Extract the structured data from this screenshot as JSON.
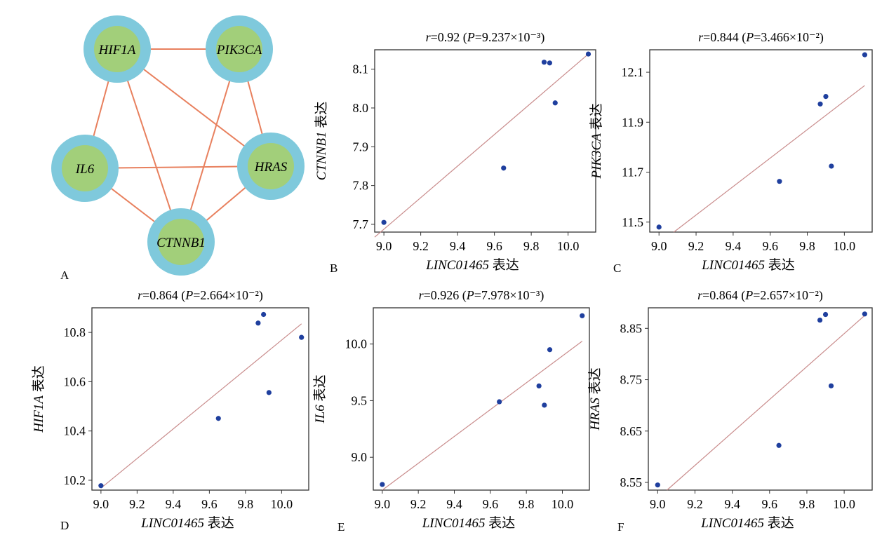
{
  "network": {
    "panel_letter": "A",
    "edge_color": "#e8805e",
    "outer_color": "#7fc9dc",
    "inner_color": "#a2cf7a",
    "nodes": [
      {
        "id": "HIF1A",
        "label": "HIF1A"
      },
      {
        "id": "PIK3CA",
        "label": "PIK3CA"
      },
      {
        "id": "IL6",
        "label": "IL6"
      },
      {
        "id": "HRAS",
        "label": "HRAS"
      },
      {
        "id": "CTNNB1",
        "label": "CTNNB1"
      }
    ],
    "edges": [
      [
        "HIF1A",
        "PIK3CA"
      ],
      [
        "HIF1A",
        "IL6"
      ],
      [
        "HIF1A",
        "HRAS"
      ],
      [
        "HIF1A",
        "CTNNB1"
      ],
      [
        "PIK3CA",
        "HRAS"
      ],
      [
        "PIK3CA",
        "CTNNB1"
      ],
      [
        "IL6",
        "HRAS"
      ],
      [
        "IL6",
        "CTNNB1"
      ],
      [
        "HRAS",
        "CTNNB1"
      ]
    ]
  },
  "chart_data": [
    {
      "panel": "B",
      "type": "scatter",
      "title": "r=0.92 (P=9.237×10⁻³)",
      "xlabel": "LINC01465 表达",
      "ylabel": "CTNNB1 表达",
      "xlim": [
        8.95,
        10.15
      ],
      "ylim": [
        7.68,
        8.15
      ],
      "xticks": [
        "9.0",
        "9.2",
        "9.4",
        "9.6",
        "9.8",
        "10.0"
      ],
      "yticks": [
        "7.7",
        "7.8",
        "7.9",
        "8.0",
        "8.1"
      ],
      "x": [
        9.0,
        9.65,
        9.87,
        9.9,
        9.93,
        10.11
      ],
      "y": [
        7.705,
        7.845,
        8.118,
        8.116,
        8.013,
        8.139
      ],
      "fit": [
        [
          8.95,
          7.667
        ],
        [
          10.11,
          8.139
        ]
      ]
    },
    {
      "panel": "C",
      "type": "scatter",
      "title": "r=0.844 (P=3.466×10⁻²)",
      "xlabel": "LINC01465 表达",
      "ylabel": "PIK3CA 表达",
      "xlim": [
        8.95,
        10.15
      ],
      "ylim": [
        11.46,
        12.19
      ],
      "xticks": [
        "9.0",
        "9.2",
        "9.4",
        "9.6",
        "9.8",
        "10.0"
      ],
      "yticks": [
        "11.5",
        "11.7",
        "11.9",
        "12.1"
      ],
      "x": [
        9.0,
        9.65,
        9.87,
        9.9,
        9.93,
        10.11
      ],
      "y": [
        11.48,
        11.663,
        11.973,
        12.003,
        11.724,
        12.17
      ],
      "fit": [
        [
          9.08,
          11.46
        ],
        [
          10.11,
          12.047
        ]
      ]
    },
    {
      "panel": "D",
      "type": "scatter",
      "title": "r=0.864 (P=2.664×10⁻²)",
      "xlabel": "LINC01465 表达",
      "ylabel": "HIF1A 表达",
      "xlim": [
        8.95,
        10.15
      ],
      "ylim": [
        10.16,
        10.9
      ],
      "xticks": [
        "9.0",
        "9.2",
        "9.4",
        "9.6",
        "9.8",
        "10.0"
      ],
      "yticks": [
        "10.2",
        "10.4",
        "10.6",
        "10.8"
      ],
      "x": [
        9.0,
        9.65,
        9.87,
        9.9,
        9.93,
        10.11
      ],
      "y": [
        10.178,
        10.451,
        10.838,
        10.873,
        10.556,
        10.78
      ],
      "fit": [
        [
          9.0,
          10.168
        ],
        [
          10.11,
          10.835
        ]
      ]
    },
    {
      "panel": "E",
      "type": "scatter",
      "title": "r=0.926 (P=7.978×10⁻³)",
      "xlabel": "LINC01465 表达",
      "ylabel": "IL6 表达",
      "xlim": [
        8.95,
        10.15
      ],
      "ylim": [
        8.71,
        10.32
      ],
      "xticks": [
        "9.0",
        "9.2",
        "9.4",
        "9.6",
        "9.8",
        "10.0"
      ],
      "yticks": [
        "9.0",
        "9.5",
        "10.0"
      ],
      "x": [
        9.0,
        9.65,
        9.87,
        9.9,
        9.93,
        10.11
      ],
      "y": [
        8.76,
        9.49,
        9.63,
        9.46,
        9.95,
        10.25
      ],
      "fit": [
        [
          9.0,
          8.71
        ],
        [
          10.11,
          10.025
        ]
      ]
    },
    {
      "panel": "F",
      "type": "scatter",
      "title": "r=0.864 (P=2.657×10⁻²)",
      "xlabel": "LINC01465 表达",
      "ylabel": "HRAS 表达",
      "xlim": [
        8.95,
        10.15
      ],
      "ylim": [
        8.535,
        8.89
      ],
      "xticks": [
        "9.0",
        "9.2",
        "9.4",
        "9.6",
        "9.8",
        "10.0"
      ],
      "yticks": [
        "8.55",
        "8.65",
        "8.75",
        "8.85"
      ],
      "x": [
        9.0,
        9.65,
        9.87,
        9.9,
        9.93,
        10.11
      ],
      "y": [
        8.545,
        8.622,
        8.866,
        8.877,
        8.738,
        8.878
      ],
      "fit": [
        [
          9.05,
          8.535
        ],
        [
          10.11,
          8.875
        ]
      ]
    }
  ]
}
